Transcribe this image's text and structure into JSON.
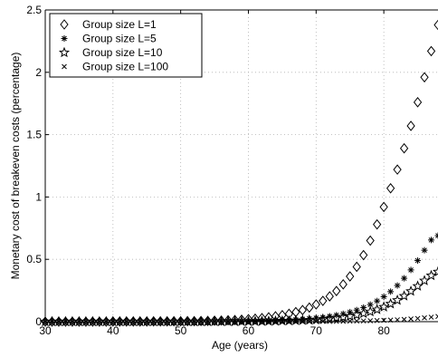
{
  "chart_data": {
    "type": "scatter",
    "xlabel": "Age (years)",
    "ylabel": "Monetary cost of breakeven costs (percentage)",
    "xlim": [
      30,
      88
    ],
    "ylim": [
      0,
      2.5
    ],
    "xticks": [
      30,
      40,
      50,
      60,
      70,
      80
    ],
    "xtick_labels": [
      "30",
      "40",
      "50",
      "60",
      "70",
      "80"
    ],
    "yticks": [
      0,
      0.5,
      1,
      1.5,
      2,
      2.5
    ],
    "ytick_labels": [
      "0",
      "0.5",
      "1",
      "1.5",
      "2",
      "2.5"
    ],
    "grid": true,
    "legend_position": "top-left",
    "x": [
      30,
      31,
      32,
      33,
      34,
      35,
      36,
      37,
      38,
      39,
      40,
      41,
      42,
      43,
      44,
      45,
      46,
      47,
      48,
      49,
      50,
      51,
      52,
      53,
      54,
      55,
      56,
      57,
      58,
      59,
      60,
      61,
      62,
      63,
      64,
      65,
      66,
      67,
      68,
      69,
      70,
      71,
      72,
      73,
      74,
      75,
      76,
      77,
      78,
      79,
      80,
      81,
      82,
      83,
      84,
      85,
      86,
      87,
      88
    ],
    "series": [
      {
        "name": "Group size L=1",
        "marker": "diamond",
        "values": [
          0.0,
          0.0,
          0.0,
          0.0,
          0.0,
          0.0,
          0.0,
          0.0,
          0.0,
          0.0,
          0.001,
          0.001,
          0.001,
          0.001,
          0.001,
          0.001,
          0.002,
          0.002,
          0.002,
          0.003,
          0.003,
          0.004,
          0.004,
          0.005,
          0.006,
          0.008,
          0.009,
          0.011,
          0.013,
          0.016,
          0.02,
          0.024,
          0.029,
          0.035,
          0.043,
          0.052,
          0.063,
          0.077,
          0.093,
          0.113,
          0.138,
          0.167,
          0.203,
          0.246,
          0.299,
          0.363,
          0.44,
          0.534,
          0.65,
          0.78,
          0.92,
          1.07,
          1.22,
          1.39,
          1.57,
          1.76,
          1.96,
          2.17,
          2.38
        ]
      },
      {
        "name": "Group size L=5",
        "marker": "asterisk",
        "values": [
          0.0,
          0.0,
          0.0,
          0.0,
          0.0,
          0.0,
          0.0,
          0.0,
          0.0,
          0.0,
          0.0,
          0.0,
          0.0,
          0.0,
          0.0,
          0.0,
          0.0,
          0.0,
          0.0,
          0.0,
          0.001,
          0.001,
          0.001,
          0.001,
          0.001,
          0.002,
          0.002,
          0.002,
          0.003,
          0.003,
          0.004,
          0.005,
          0.006,
          0.007,
          0.009,
          0.011,
          0.013,
          0.016,
          0.02,
          0.024,
          0.029,
          0.035,
          0.043,
          0.052,
          0.063,
          0.077,
          0.093,
          0.113,
          0.137,
          0.166,
          0.2,
          0.241,
          0.29,
          0.348,
          0.415,
          0.49,
          0.573,
          0.655,
          0.69
        ]
      },
      {
        "name": "Group size L=10",
        "marker": "star",
        "values": [
          0.0,
          0.0,
          0.0,
          0.0,
          0.0,
          0.0,
          0.0,
          0.0,
          0.0,
          0.0,
          0.0,
          0.0,
          0.0,
          0.0,
          0.0,
          0.0,
          0.0,
          0.0,
          0.0,
          0.0,
          0.0,
          0.0,
          0.0,
          0.0,
          0.001,
          0.001,
          0.001,
          0.001,
          0.001,
          0.002,
          0.002,
          0.002,
          0.003,
          0.004,
          0.005,
          0.006,
          0.007,
          0.009,
          0.011,
          0.013,
          0.016,
          0.02,
          0.024,
          0.03,
          0.036,
          0.044,
          0.054,
          0.066,
          0.08,
          0.097,
          0.118,
          0.143,
          0.172,
          0.206,
          0.244,
          0.285,
          0.329,
          0.37,
          0.4
        ]
      },
      {
        "name": "Group size L=100",
        "marker": "cross",
        "values": [
          0.0,
          0.0,
          0.0,
          0.0,
          0.0,
          0.0,
          0.0,
          0.0,
          0.0,
          0.0,
          0.0,
          0.0,
          0.0,
          0.0,
          0.0,
          0.0,
          0.0,
          0.0,
          0.0,
          0.0,
          0.0,
          0.0,
          0.0,
          0.0,
          0.0,
          0.0,
          0.0,
          0.0,
          0.0,
          0.0,
          0.0,
          0.0,
          0.0,
          0.0,
          0.0,
          0.001,
          0.001,
          0.001,
          0.001,
          0.001,
          0.002,
          0.002,
          0.002,
          0.003,
          0.003,
          0.004,
          0.005,
          0.006,
          0.007,
          0.009,
          0.011,
          0.013,
          0.015,
          0.018,
          0.022,
          0.026,
          0.031,
          0.036,
          0.042
        ]
      }
    ]
  }
}
